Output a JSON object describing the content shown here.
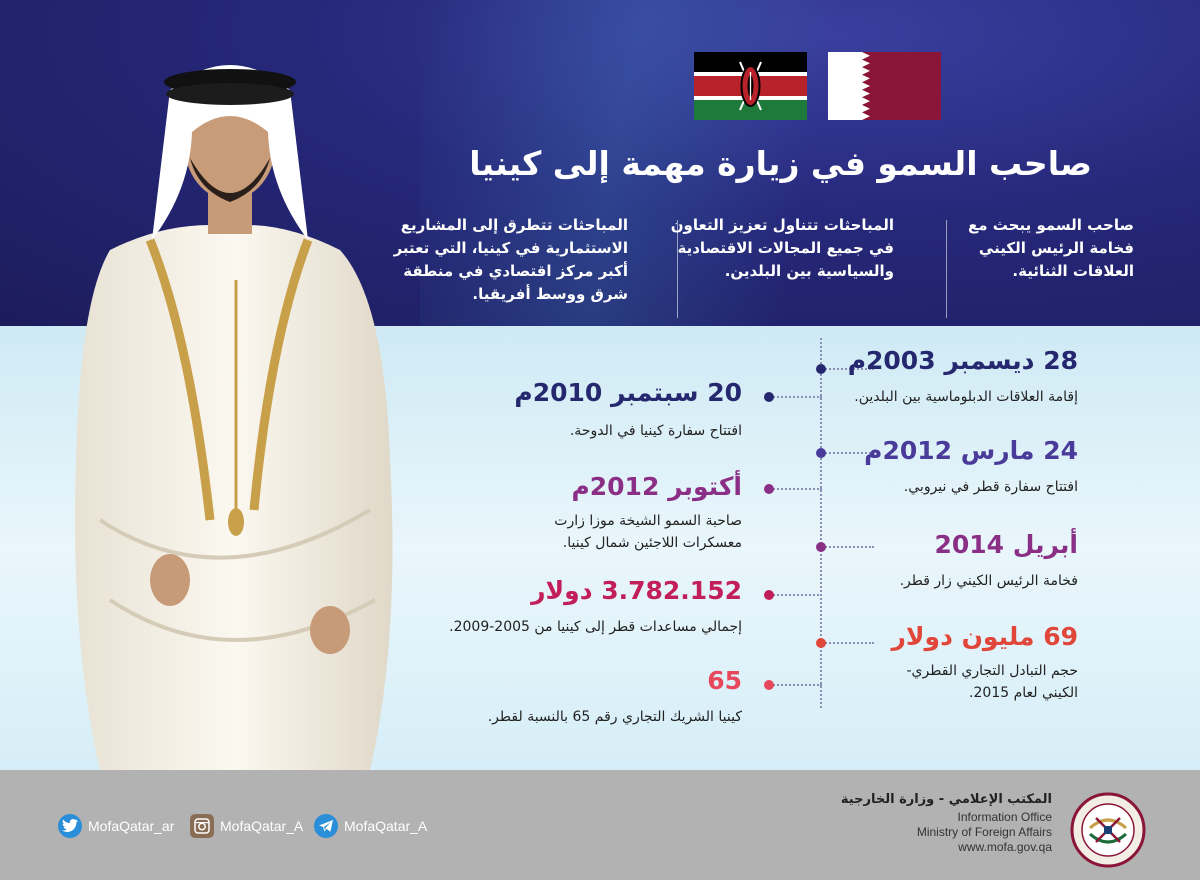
{
  "title": "صاحب السمو في زيارة مهمة إلى كينيا",
  "summary": [
    "صاحب السمو يبحث مع فخامة الرئيس الكيني العلاقات الثنائية.",
    "المباحثات تتناول تعزيز التعاون في جميع المجالات الاقتصادية والسياسية بين البلدين.",
    "المباحثات تتطرق إلى المشاريع الاستثمارية في كينيا، التي تعتبر أكبر مركز اقتصادي في منطقة شرق ووسط أفريقيا."
  ],
  "timeline_right": [
    {
      "date": "28 ديسمبر 2003م",
      "desc": "إقامة العلاقات الدبلوماسية بين البلدين.",
      "color": "#26286f"
    },
    {
      "date": "24 مارس 2012م",
      "desc": "افتتاح سفارة قطر في نيروبي.",
      "color": "#4a3b9a"
    },
    {
      "date": "أبريل 2014",
      "desc": "فخامة الرئيس الكيني زار قطر.",
      "color": "#8b2f86"
    },
    {
      "date": "69 مليون دولار",
      "desc": "حجم التبادل التجاري القطري- الكيني لعام 2015.",
      "color": "#e0463a"
    }
  ],
  "timeline_left": [
    {
      "date": "20 سبتمبر 2010م",
      "desc": "افتتاح سفارة كينيا في الدوحة.",
      "color": "#26286f"
    },
    {
      "date": "أكتوبر 2012م",
      "desc": "صاحبة السمو الشيخة موزا زارت معسكرات اللاجئين شمال كينيا.",
      "color": "#8b2f86"
    },
    {
      "date": "3.782.152 دولار",
      "desc": "إجمالي مساعدات قطر إلى كينيا من 2005-2009.",
      "color": "#c21e5a"
    },
    {
      "date": "65",
      "desc": "كينيا الشريك التجاري رقم 65 بالنسبة لقطر.",
      "color": "#e8485c"
    }
  ],
  "social": [
    {
      "handle": "MofaQatar_ar",
      "icon": "twitter-icon"
    },
    {
      "handle": "MofaQatar_A",
      "icon": "instagram-icon"
    },
    {
      "handle": "MofaQatar_A",
      "icon": "telegram-icon"
    }
  ],
  "office": {
    "arabic": "المكتب الإعلامي - وزارة الخارجية",
    "line1": "Information Office",
    "line2": "Ministry of Foreign Affairs",
    "website": "www.mofa.gov.qa"
  },
  "colors": {
    "top_band": "#26287a",
    "mid_band": "#d6eef8",
    "footer": "#b2b2b2",
    "qatar_maroon": "#8a1538"
  }
}
